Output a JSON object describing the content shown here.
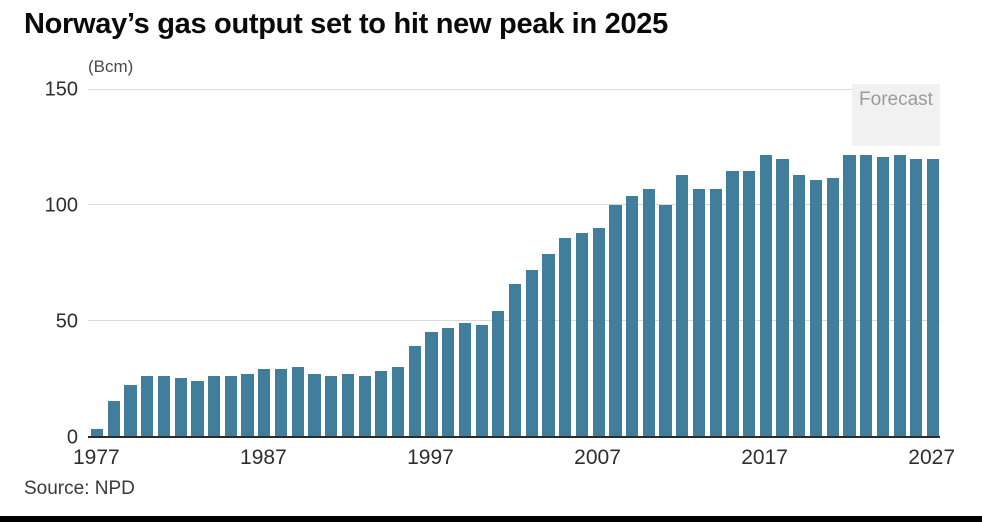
{
  "chart_data": {
    "type": "bar",
    "title": "Norway’s gas output set to hit new peak in 2025",
    "unit_label": "(Bcm)",
    "forecast_label": "Forecast",
    "source": "Source: NPD",
    "bar_color": "#417e9b",
    "ylim": [
      0,
      150
    ],
    "yticks": [
      0,
      50,
      100,
      150
    ],
    "xticks": [
      1977,
      1987,
      1997,
      2007,
      2017,
      2027
    ],
    "forecast_start_year": 2024,
    "grid": true,
    "legend": "none",
    "years": [
      1977,
      1978,
      1979,
      1980,
      1981,
      1982,
      1983,
      1984,
      1985,
      1986,
      1987,
      1988,
      1989,
      1990,
      1991,
      1992,
      1993,
      1994,
      1995,
      1996,
      1997,
      1998,
      1999,
      2000,
      2001,
      2002,
      2003,
      2004,
      2005,
      2006,
      2007,
      2008,
      2009,
      2010,
      2011,
      2012,
      2013,
      2014,
      2015,
      2016,
      2017,
      2018,
      2019,
      2020,
      2021,
      2022,
      2023,
      2024,
      2025,
      2026,
      2027
    ],
    "values": [
      3,
      15,
      22,
      26,
      26,
      25,
      24,
      26,
      26,
      27,
      29,
      29,
      30,
      27,
      26,
      27,
      26,
      28,
      30,
      39,
      45,
      47,
      49,
      48,
      54,
      66,
      72,
      79,
      86,
      88,
      90,
      100,
      104,
      107,
      100,
      113,
      107,
      107,
      115,
      115,
      122,
      120,
      113,
      111,
      112,
      122,
      122,
      121,
      122,
      120,
      120
    ]
  }
}
